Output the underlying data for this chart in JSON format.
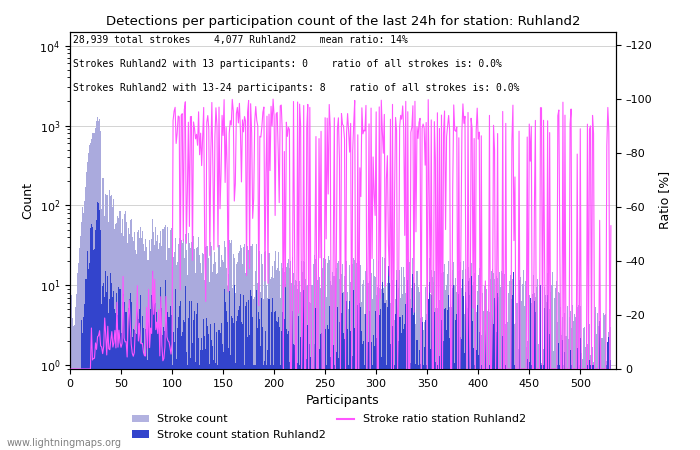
{
  "title": "Detections per participation count of the last 24h for station: Ruhland2",
  "xlabel": "Participants",
  "ylabel_left": "Count",
  "ylabel_right": "Ratio [%]",
  "annotation_lines": [
    "28,939 total strokes    4,077 Ruhland2    mean ratio: 14%",
    "Strokes Ruhland2 with 13 participants: 0    ratio of all strokes is: 0.0%",
    "Strokes Ruhland2 with 13-24 participants: 8    ratio of all strokes is: 0.0%"
  ],
  "watermark": "www.lightningmaps.org",
  "color_total": "#aaaadd",
  "color_station": "#3344cc",
  "color_ratio": "#ff55ff",
  "xlim": [
    0,
    535
  ],
  "ylim_log": [
    0.9,
    15000
  ],
  "ylim_ratio": [
    0,
    125
  ],
  "ratio_ticks": [
    0,
    20,
    40,
    60,
    80,
    100,
    120
  ],
  "ratio_tick_labels": [
    "0",
    "20",
    "40",
    "60",
    "80",
    "100",
    "120"
  ],
  "xticks": [
    0,
    50,
    100,
    150,
    200,
    250,
    300,
    350,
    400,
    450,
    500
  ]
}
